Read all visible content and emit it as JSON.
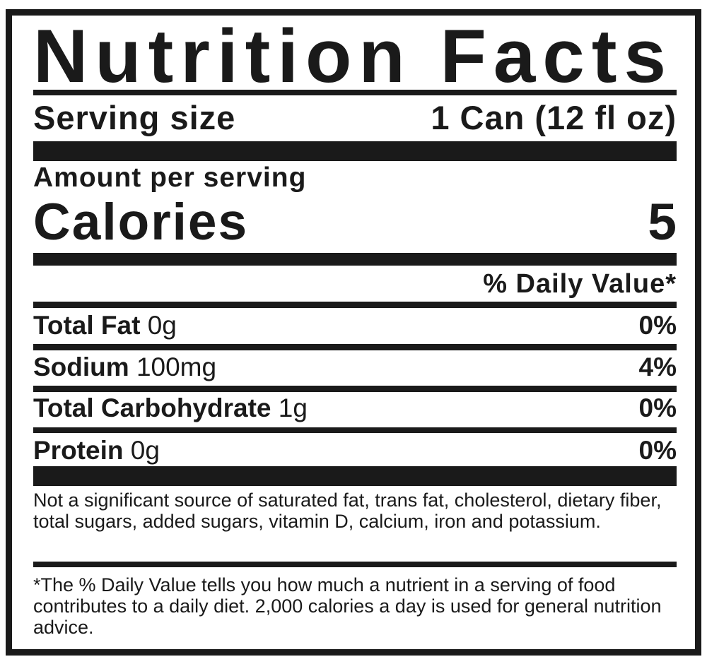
{
  "title": "Nutrition Facts",
  "serving": {
    "label": "Serving size",
    "value": "1 Can (12 fl oz)"
  },
  "amount_per_serving": "Amount per serving",
  "calories": {
    "label": "Calories",
    "value": "5"
  },
  "daily_value_header": "% Daily Value*",
  "nutrients": [
    {
      "name": "Total Fat",
      "amount": "0g",
      "dv": "0%"
    },
    {
      "name": "Sodium",
      "amount": "100mg",
      "dv": "4%"
    },
    {
      "name": "Total Carbohydrate",
      "amount": "1g",
      "dv": "0%"
    },
    {
      "name": "Protein",
      "amount": "0g",
      "dv": "0%"
    }
  ],
  "not_significant_note": "Not a significant source of saturated fat, trans fat, cholesterol, dietary fiber, total sugars, added sugars, vitamin D, calcium, iron and potassium.",
  "daily_value_note": "*The % Daily Value tells you how much a nutrient in a serving of food contributes to a daily diet. 2,000 calories a day is used for general nutrition advice."
}
